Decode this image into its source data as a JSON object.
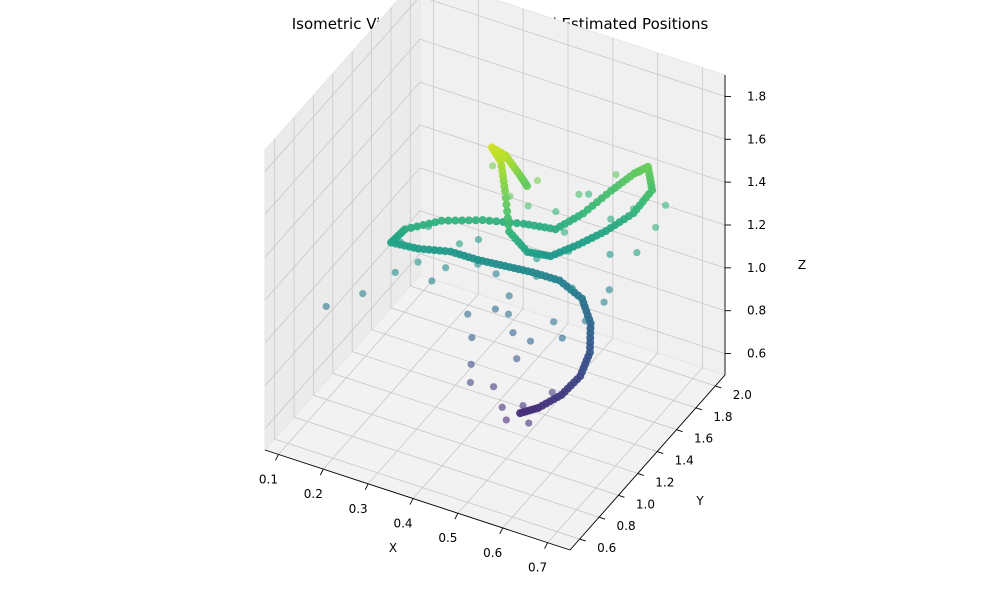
{
  "chart_data": {
    "type": "scatter",
    "projection": "3d-isometric",
    "title": "Isometric View of Ground Truth and Estimated Positions",
    "xlabel": "X",
    "ylabel": "Y",
    "zlabel": "Z",
    "xlim": [
      0.07,
      0.75
    ],
    "ylim": [
      0.5,
      2.1
    ],
    "zlim": [
      0.5,
      1.9
    ],
    "xticks": [
      "0.1",
      "0.2",
      "0.3",
      "0.4",
      "0.5",
      "0.6",
      "0.7"
    ],
    "yticks": [
      "0.6",
      "0.8",
      "1.0",
      "1.2",
      "1.4",
      "1.6",
      "1.8",
      "2.0"
    ],
    "zticks": [
      "0.6",
      "0.8",
      "1.0",
      "1.2",
      "1.4",
      "1.6",
      "1.8"
    ],
    "grid": true,
    "colormap": "viridis",
    "series": [
      {
        "kind": "ground-truth-path",
        "points": [
          [
            0.52,
            1.05,
            0.7
          ],
          [
            0.55,
            1.1,
            0.72
          ],
          [
            0.58,
            1.2,
            0.75
          ],
          [
            0.6,
            1.3,
            0.8
          ],
          [
            0.6,
            1.4,
            0.86
          ],
          [
            0.58,
            1.5,
            0.93
          ],
          [
            0.55,
            1.55,
            1.0
          ],
          [
            0.5,
            1.55,
            1.05
          ],
          [
            0.45,
            1.5,
            1.08
          ],
          [
            0.4,
            1.45,
            1.1
          ],
          [
            0.35,
            1.4,
            1.12
          ],
          [
            0.3,
            1.35,
            1.15
          ],
          [
            0.25,
            1.25,
            1.18
          ],
          [
            0.2,
            1.2,
            1.2
          ],
          [
            0.22,
            1.25,
            1.25
          ],
          [
            0.28,
            1.35,
            1.28
          ],
          [
            0.35,
            1.45,
            1.28
          ],
          [
            0.42,
            1.55,
            1.26
          ],
          [
            0.48,
            1.6,
            1.25
          ],
          [
            0.52,
            1.7,
            1.3
          ],
          [
            0.55,
            1.85,
            1.35
          ],
          [
            0.58,
            1.95,
            1.4
          ],
          [
            0.6,
            2.0,
            1.42
          ],
          [
            0.62,
            1.95,
            1.35
          ],
          [
            0.6,
            1.85,
            1.28
          ],
          [
            0.56,
            1.75,
            1.22
          ],
          [
            0.52,
            1.65,
            1.18
          ],
          [
            0.48,
            1.55,
            1.15
          ],
          [
            0.45,
            1.45,
            1.2
          ],
          [
            0.42,
            1.4,
            1.3
          ],
          [
            0.4,
            1.45,
            1.45
          ],
          [
            0.38,
            1.5,
            1.55
          ],
          [
            0.36,
            1.5,
            1.6
          ],
          [
            0.38,
            1.55,
            1.55
          ],
          [
            0.4,
            1.6,
            1.45
          ],
          [
            0.42,
            1.6,
            1.4
          ]
        ]
      },
      {
        "kind": "estimated-positions",
        "points": [
          [
            0.4,
            1.35,
            0.95
          ],
          [
            0.42,
            1.4,
            1.0
          ],
          [
            0.45,
            1.3,
            0.9
          ],
          [
            0.48,
            1.2,
            0.85
          ],
          [
            0.5,
            1.25,
            0.92
          ],
          [
            0.38,
            1.45,
            1.05
          ],
          [
            0.35,
            1.4,
            1.1
          ],
          [
            0.33,
            1.5,
            1.15
          ],
          [
            0.3,
            1.3,
            1.1
          ],
          [
            0.28,
            1.25,
            1.05
          ],
          [
            0.55,
            1.45,
            1.1
          ],
          [
            0.52,
            1.55,
            1.2
          ],
          [
            0.5,
            1.6,
            1.25
          ],
          [
            0.46,
            1.5,
            1.15
          ],
          [
            0.44,
            1.3,
            0.98
          ],
          [
            0.6,
            1.6,
            1.05
          ],
          [
            0.58,
            1.7,
            1.15
          ],
          [
            0.56,
            1.8,
            1.25
          ],
          [
            0.6,
            1.85,
            1.3
          ],
          [
            0.62,
            1.9,
            1.35
          ],
          [
            0.55,
            1.9,
            1.4
          ],
          [
            0.5,
            1.75,
            1.35
          ],
          [
            0.47,
            1.65,
            1.3
          ],
          [
            0.43,
            1.55,
            1.35
          ],
          [
            0.4,
            1.5,
            1.4
          ],
          [
            0.37,
            1.55,
            1.5
          ],
          [
            0.32,
            1.35,
            1.2
          ],
          [
            0.26,
            1.2,
            1.15
          ],
          [
            0.22,
            1.15,
            1.1
          ],
          [
            0.2,
            1.3,
            1.15
          ],
          [
            0.24,
            1.4,
            1.2
          ],
          [
            0.45,
            1.1,
            0.75
          ],
          [
            0.48,
            1.05,
            0.7
          ],
          [
            0.5,
            1.0,
            0.68
          ],
          [
            0.52,
            1.08,
            0.72
          ],
          [
            0.55,
            1.0,
            0.7
          ],
          [
            0.57,
            1.15,
            0.78
          ],
          [
            0.42,
            1.0,
            0.8
          ],
          [
            0.4,
            1.1,
            0.82
          ],
          [
            0.38,
            1.2,
            0.88
          ],
          [
            0.36,
            1.25,
            0.95
          ],
          [
            0.53,
            1.35,
            0.98
          ],
          [
            0.56,
            1.3,
            0.95
          ],
          [
            0.59,
            1.4,
            1.0
          ],
          [
            0.61,
            1.5,
            1.05
          ],
          [
            0.64,
            1.7,
            1.2
          ],
          [
            0.66,
            1.8,
            1.28
          ],
          [
            0.65,
            1.95,
            1.3
          ],
          [
            0.58,
            2.0,
            1.38
          ],
          [
            0.5,
            1.85,
            1.3
          ],
          [
            0.12,
            0.9,
            1.0
          ],
          [
            0.18,
            1.0,
            1.05
          ],
          [
            0.34,
            1.6,
            1.45
          ],
          [
            0.44,
            1.6,
            1.45
          ],
          [
            0.47,
            1.45,
            1.1
          ]
        ]
      }
    ]
  }
}
